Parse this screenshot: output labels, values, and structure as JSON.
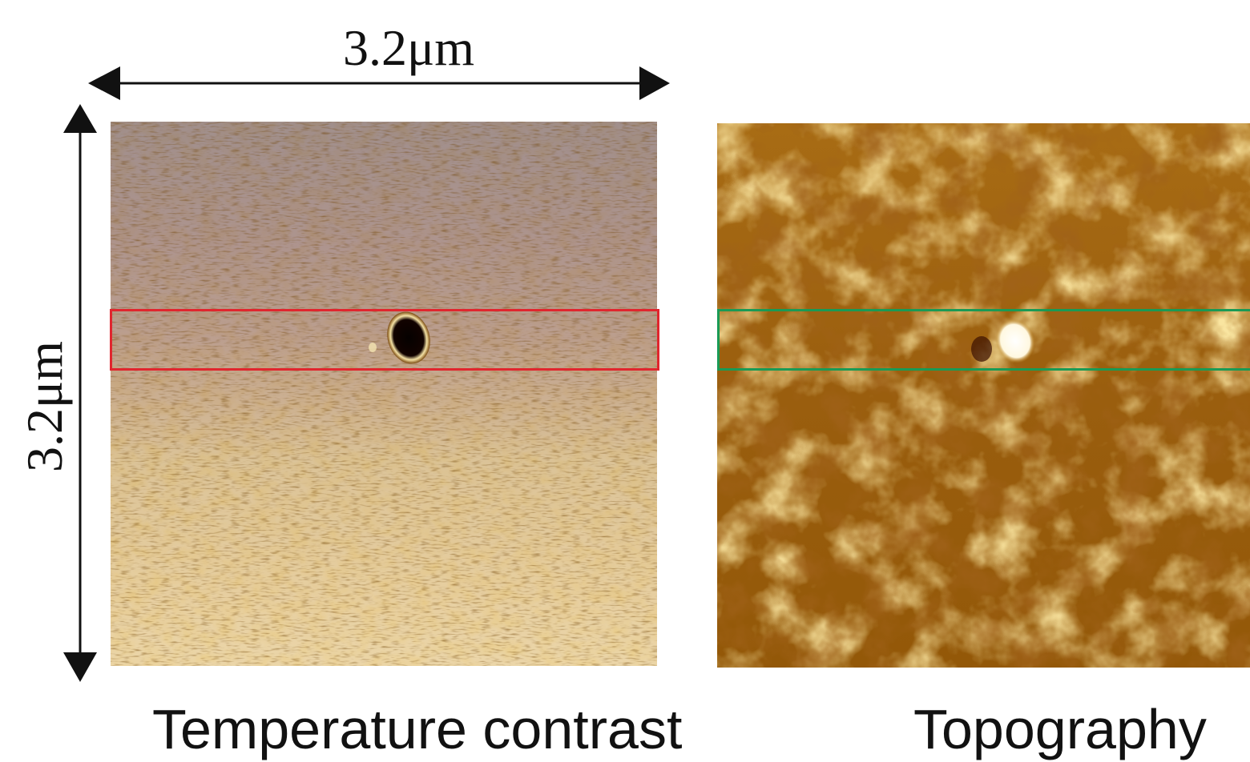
{
  "figure": {
    "scale_bar_horizontal": "3.2μm",
    "scale_bar_vertical": "3.2μm",
    "caption_left": "Temperature contrast",
    "caption_right": "Topography"
  },
  "colors": {
    "selection_left": "#e0262e",
    "selection_right": "#1a9a55",
    "afm_dark": "#3a0c02",
    "afm_mid": "#a46a10",
    "afm_light": "#f4e0a0"
  },
  "icons": [
    "double-arrow-horizontal",
    "double-arrow-vertical"
  ]
}
